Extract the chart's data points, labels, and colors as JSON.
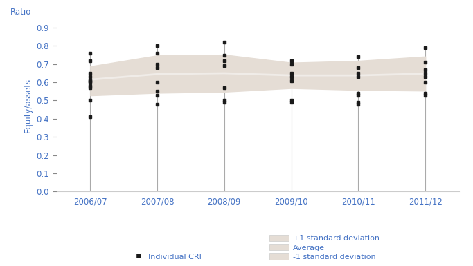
{
  "years": [
    0,
    1,
    2,
    3,
    4,
    5
  ],
  "year_labels": [
    "2006/07",
    "2007/08",
    "2008/09",
    "2009/10",
    "2010/11",
    "2011/12"
  ],
  "avg": [
    0.615,
    0.645,
    0.65,
    0.638,
    0.638,
    0.648
  ],
  "upper_sd": [
    0.688,
    0.748,
    0.752,
    0.708,
    0.718,
    0.742
  ],
  "lower_sd": [
    0.528,
    0.542,
    0.548,
    0.568,
    0.558,
    0.554
  ],
  "individual_points": [
    [
      0.41,
      0.5,
      0.57,
      0.58,
      0.6,
      0.61,
      0.61,
      0.63,
      0.65,
      0.72,
      0.76
    ],
    [
      0.48,
      0.53,
      0.55,
      0.6,
      0.68,
      0.7,
      0.76,
      0.8
    ],
    [
      0.49,
      0.5,
      0.57,
      0.69,
      0.72,
      0.75,
      0.82
    ],
    [
      0.49,
      0.5,
      0.61,
      0.63,
      0.65,
      0.7,
      0.72
    ],
    [
      0.48,
      0.49,
      0.53,
      0.54,
      0.63,
      0.65,
      0.68,
      0.74
    ],
    [
      0.53,
      0.54,
      0.6,
      0.63,
      0.65,
      0.67,
      0.71,
      0.79
    ]
  ],
  "bg_color": "#ffffff",
  "band_color": "#e5ddd5",
  "avg_line_color": "#f0ece8",
  "marker_color": "#1a1a1a",
  "axis_label_color": "#4472c4",
  "tick_label_color": "#4472c4",
  "ylabel": "Equity/assets",
  "ratio_label": "Ratio",
  "ylim": [
    0.0,
    0.95
  ],
  "yticks": [
    0.0,
    0.1,
    0.2,
    0.3,
    0.4,
    0.5,
    0.6,
    0.7,
    0.8,
    0.9
  ],
  "legend_marker_label": "Individual CRI",
  "legend_upper_label": "+1 standard deviation",
  "legend_avg_label": "Average",
  "legend_lower_label": "-1 standard deviation",
  "whisker_color": "#aaaaaa",
  "fig_width": 6.83,
  "fig_height": 3.85
}
